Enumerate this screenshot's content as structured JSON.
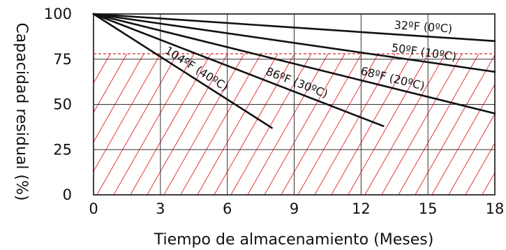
{
  "chart_data": {
    "type": "line",
    "title": "",
    "xlabel": "Tiempo de almacenamiento (Meses)",
    "ylabel": "Capacidad residual (%)",
    "xlim": [
      0,
      18
    ],
    "ylim": [
      0,
      100
    ],
    "x_ticks": [
      "0",
      "3",
      "6",
      "9",
      "12",
      "15",
      "18"
    ],
    "y_ticks": [
      "0",
      "25",
      "50",
      "75",
      "100"
    ],
    "grid": true,
    "threshold": {
      "y": 78,
      "color": "#e0252b",
      "style": "dashed"
    },
    "hatched_region": {
      "below_y": 78,
      "color": "#e0252b"
    },
    "series": [
      {
        "name": "32ºF (0ºC)",
        "x": [
          0,
          18
        ],
        "y": [
          100,
          85
        ]
      },
      {
        "name": "50ºF (10ºC)",
        "x": [
          0,
          18
        ],
        "y": [
          100,
          68
        ]
      },
      {
        "name": "68ºF (20ºC)",
        "x": [
          0,
          18
        ],
        "y": [
          100,
          45
        ]
      },
      {
        "name": "86ºF (30ºC)",
        "x": [
          0,
          13
        ],
        "y": [
          100,
          38
        ]
      },
      {
        "name": "104ºF (40ºC)",
        "x": [
          0,
          8
        ],
        "y": [
          100,
          37
        ]
      }
    ],
    "colors": {
      "line": "#111111",
      "grid": "#333333",
      "threshold": "#e0252b"
    }
  }
}
